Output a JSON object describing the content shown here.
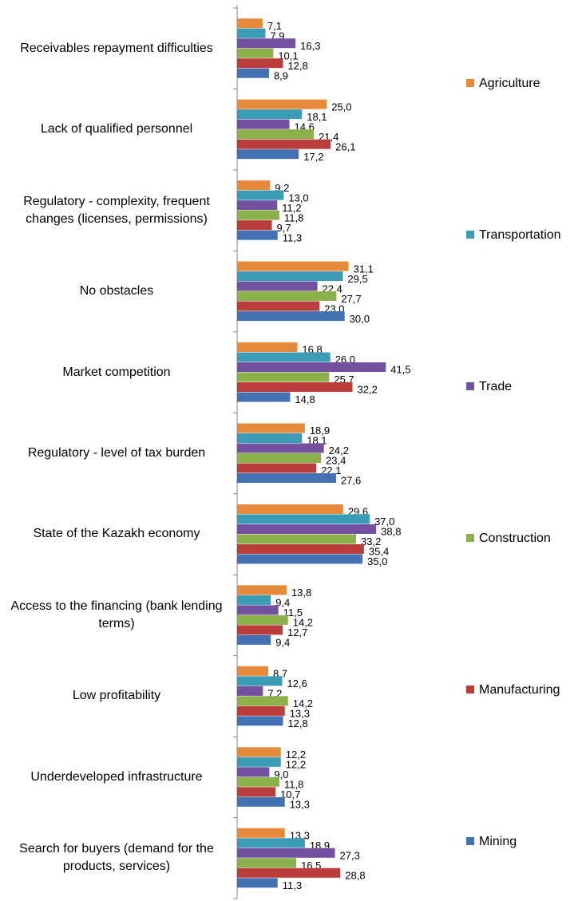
{
  "chart_data": {
    "type": "bar",
    "orientation": "horizontal",
    "categories": [
      "Receivables repayment difficulties",
      "Lack of qualified personnel",
      "Regulatory - complexity, frequent changes (licenses, permissions)",
      "No obstacles",
      "Market competition",
      "Regulatory - level of tax burden",
      "State of the Kazakh economy",
      "Access to the financing (bank lending terms)",
      "Low profitability",
      "Underdeveloped infrastructure",
      "Search for buyers (demand for the products, services)"
    ],
    "xlim": [
      0,
      45
    ],
    "series": [
      {
        "name": "Agriculture",
        "color": "#e8893a",
        "values": [
          7.1,
          25.0,
          9.2,
          31.1,
          16.8,
          18.9,
          29.6,
          13.8,
          8.7,
          12.2,
          13.3
        ],
        "value_labels": [
          "7,1",
          "25,0",
          "9,2",
          "31,1",
          "16,8",
          "18,9",
          "29,6",
          "13,8",
          "8,7",
          "12,2",
          "13,3"
        ]
      },
      {
        "name": "Transportation",
        "color": "#3b9cb5",
        "values": [
          7.9,
          18.1,
          13.0,
          29.5,
          26.0,
          18.1,
          37.0,
          9.4,
          12.6,
          12.2,
          18.9
        ],
        "value_labels": [
          "7,9",
          "18,1",
          "13,0",
          "29,5",
          "26,0",
          "18,1",
          "37,0",
          "9,4",
          "12,6",
          "12,2",
          "18,9"
        ]
      },
      {
        "name": "Trade",
        "color": "#7350a0",
        "values": [
          16.3,
          14.6,
          11.2,
          22.4,
          41.5,
          24.2,
          38.8,
          11.5,
          7.2,
          9.0,
          27.3
        ],
        "value_labels": [
          "16,3",
          "14,6",
          "11,2",
          "22,4",
          "41,5",
          "24,2",
          "38,8",
          "11,5",
          "7,2",
          "9,0",
          "27,3"
        ]
      },
      {
        "name": "Construction",
        "color": "#8cb04a",
        "values": [
          10.1,
          21.4,
          11.8,
          27.7,
          25.7,
          23.4,
          33.2,
          14.2,
          14.2,
          11.8,
          16.5
        ],
        "value_labels": [
          "10,1",
          "21,4",
          "11,8",
          "27,7",
          "25,7",
          "23,4",
          "33,2",
          "14,2",
          "14,2",
          "11,8",
          "16,5"
        ]
      },
      {
        "name": "Manufacturing",
        "color": "#bb3d3b",
        "values": [
          12.8,
          26.1,
          9.7,
          23.0,
          32.2,
          22.1,
          35.4,
          12.7,
          13.3,
          10.7,
          28.8
        ],
        "value_labels": [
          "12,8",
          "26,1",
          "9,7",
          "23,0",
          "32,2",
          "22,1",
          "35,4",
          "12,7",
          "13,3",
          "10,7",
          "28,8"
        ]
      },
      {
        "name": "Mining",
        "color": "#4471b4",
        "values": [
          8.9,
          17.2,
          11.3,
          30.0,
          14.8,
          27.6,
          35.0,
          9.4,
          12.8,
          13.3,
          11.3
        ],
        "value_labels": [
          "8,9",
          "17,2",
          "11,3",
          "30,0",
          "14,8",
          "27,6",
          "35,0",
          "9,4",
          "12,8",
          "13,3",
          "11,3"
        ]
      }
    ]
  }
}
